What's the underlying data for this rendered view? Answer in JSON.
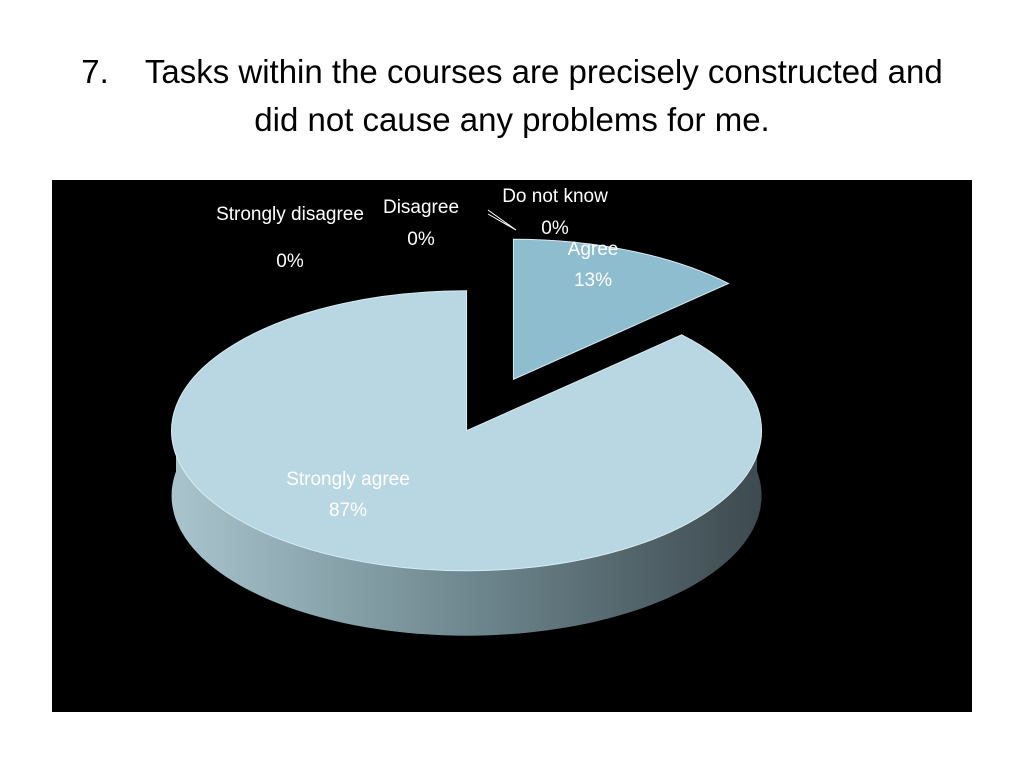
{
  "chart_data": {
    "type": "pie3d",
    "title": "7.    Tasks within the courses are precisely constructed and did not cause any problems for me.",
    "categories": [
      "Strongly disagree",
      "Disagree",
      "Do not know",
      "Agree",
      "Strongly agree"
    ],
    "values": [
      0,
      0,
      0,
      13,
      87
    ],
    "value_labels": [
      "0%",
      "0%",
      "0%",
      "13%",
      "87%"
    ],
    "colors": [
      "#4f81bd",
      "#c0504d",
      "#9bbb59",
      "#8fbdd0",
      "#b8d7e2"
    ]
  }
}
